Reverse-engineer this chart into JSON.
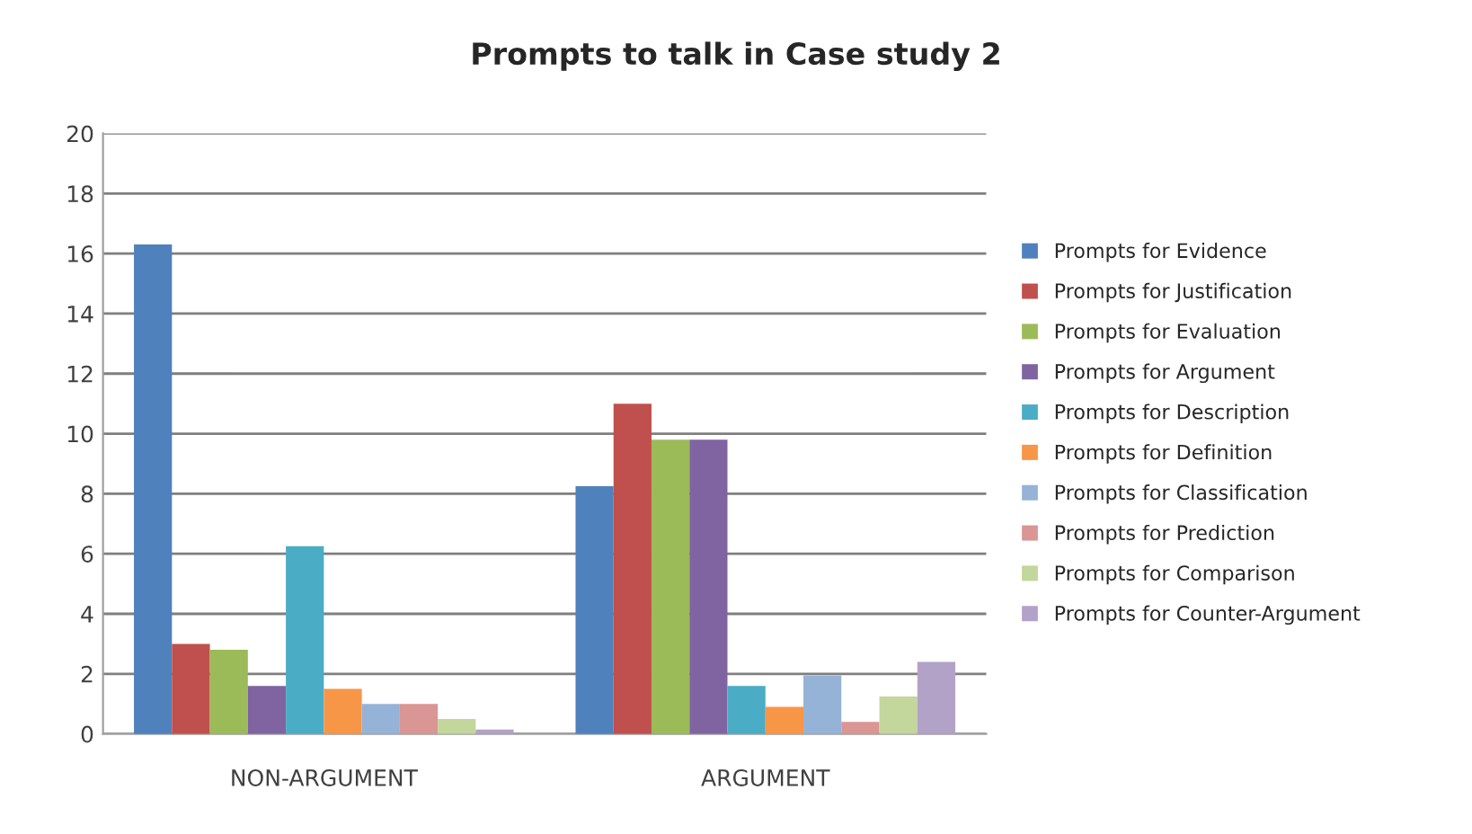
{
  "chart_data": {
    "type": "bar",
    "title": "Prompts to talk in Case study 2",
    "categories": [
      "NON-ARGUMENT",
      "ARGUMENT"
    ],
    "series": [
      {
        "name": "Prompts for Evidence",
        "color": "#4f81bd",
        "values": [
          16.3,
          8.25
        ]
      },
      {
        "name": "Prompts for Justification",
        "color": "#c0504d",
        "values": [
          3.0,
          11.0
        ]
      },
      {
        "name": "Prompts for Evaluation",
        "color": "#9bbb59",
        "values": [
          2.8,
          9.8
        ]
      },
      {
        "name": "Prompts for Argument",
        "color": "#8064a2",
        "values": [
          1.6,
          9.8
        ]
      },
      {
        "name": "Prompts for Description",
        "color": "#4bacc6",
        "values": [
          6.25,
          1.6
        ]
      },
      {
        "name": "Prompts for Definition",
        "color": "#f79646",
        "values": [
          1.5,
          0.9
        ]
      },
      {
        "name": "Prompts for Classification",
        "color": "#95b3d7",
        "values": [
          1.0,
          1.95
        ]
      },
      {
        "name": "Prompts for Prediction",
        "color": "#d99694",
        "values": [
          1.0,
          0.4
        ]
      },
      {
        "name": "Prompts for Comparison",
        "color": "#c3d69b",
        "values": [
          0.5,
          1.25
        ]
      },
      {
        "name": "Prompts for Counter-Argument",
        "color": "#b3a2c7",
        "values": [
          0.15,
          2.4
        ]
      }
    ],
    "ylim": [
      0,
      20
    ],
    "yticks": [
      0,
      2,
      4,
      6,
      8,
      10,
      12,
      14,
      16,
      18,
      20
    ],
    "grid": "y",
    "legend": "right"
  }
}
